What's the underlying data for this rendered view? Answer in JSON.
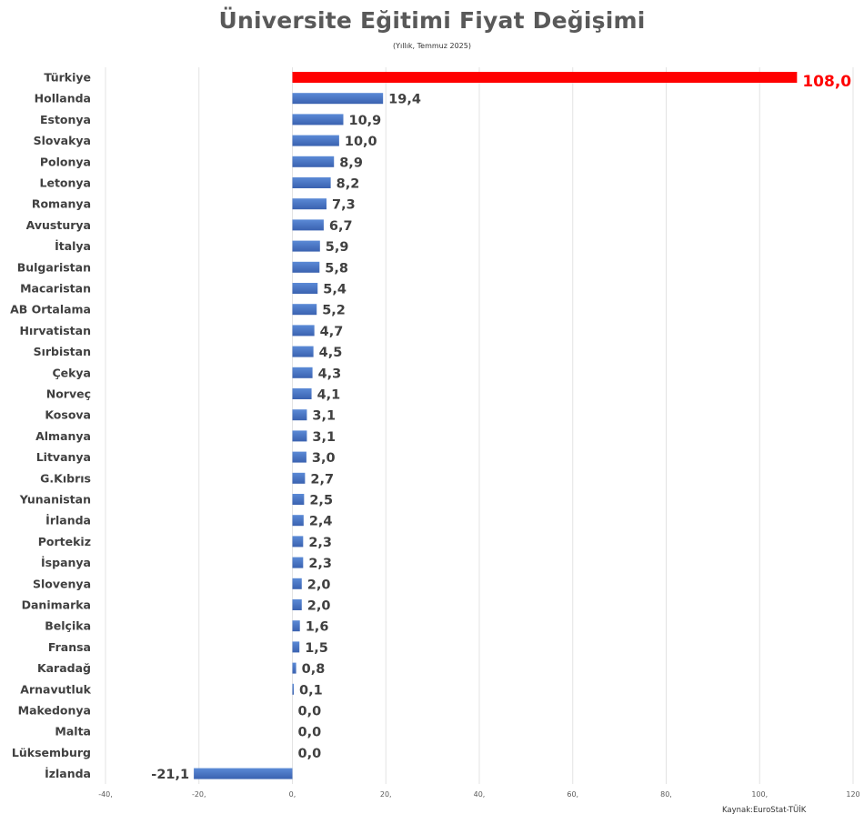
{
  "chart_data": {
    "type": "bar",
    "orientation": "horizontal",
    "title": "Üniversite Eğitimi Fiyat Değişimi",
    "subtitle": "(Yıllık, Temmuz 2025)",
    "source": "Kaynak:EuroStat-TÜİK",
    "categories": [
      "Türkiye",
      "Hollanda",
      "Estonya",
      "Slovakya",
      "Polonya",
      "Letonya",
      "Romanya",
      "Avusturya",
      "İtalya",
      "Bulgaristan",
      "Macaristan",
      "AB Ortalama",
      "Hırvatistan",
      "Sırbistan",
      "Çekya",
      "Norveç",
      "Kosova",
      "Almanya",
      "Litvanya",
      "G.Kıbrıs",
      "Yunanistan",
      "İrlanda",
      "Portekiz",
      "İspanya",
      "Slovenya",
      "Danimarka",
      "Belçika",
      "Fransa",
      "Karadağ",
      "Arnavutluk",
      "Makedonya",
      "Malta",
      "Lüksemburg",
      "İzlanda"
    ],
    "values": [
      108.0,
      19.4,
      10.9,
      10.0,
      8.9,
      8.2,
      7.3,
      6.7,
      5.9,
      5.8,
      5.4,
      5.2,
      4.7,
      4.5,
      4.3,
      4.1,
      3.1,
      3.1,
      3.0,
      2.7,
      2.5,
      2.4,
      2.3,
      2.3,
      2.0,
      2.0,
      1.6,
      1.5,
      0.8,
      0.1,
      0.0,
      0.0,
      0.0,
      -21.1
    ],
    "data_labels": [
      "108,0",
      "19,4",
      "10,9",
      "10,0",
      "8,9",
      "8,2",
      "7,3",
      "6,7",
      "5,9",
      "5,8",
      "5,4",
      "5,2",
      "4,7",
      "4,5",
      "4,3",
      "4,1",
      "3,1",
      "3,1",
      "3,0",
      "2,7",
      "2,5",
      "2,4",
      "2,3",
      "2,3",
      "2,0",
      "2,0",
      "1,6",
      "1,5",
      "0,8",
      "0,1",
      "0,0",
      "0,0",
      "0,0",
      "-21,1"
    ],
    "xlim": [
      -40,
      120
    ],
    "xticks": [
      -40,
      -20,
      0,
      20,
      40,
      60,
      80,
      100,
      120
    ],
    "xtick_labels": [
      "-40,",
      "-20,",
      "0,",
      "20,",
      "40,",
      "60,",
      "80,",
      "100,",
      "120"
    ],
    "grid": true,
    "highlight": {
      "category": "Türkiye",
      "color": "#ff0000"
    },
    "bar_color": "#4472c4",
    "label_color": "#404040",
    "highlight_label_color": "#ff0000"
  }
}
